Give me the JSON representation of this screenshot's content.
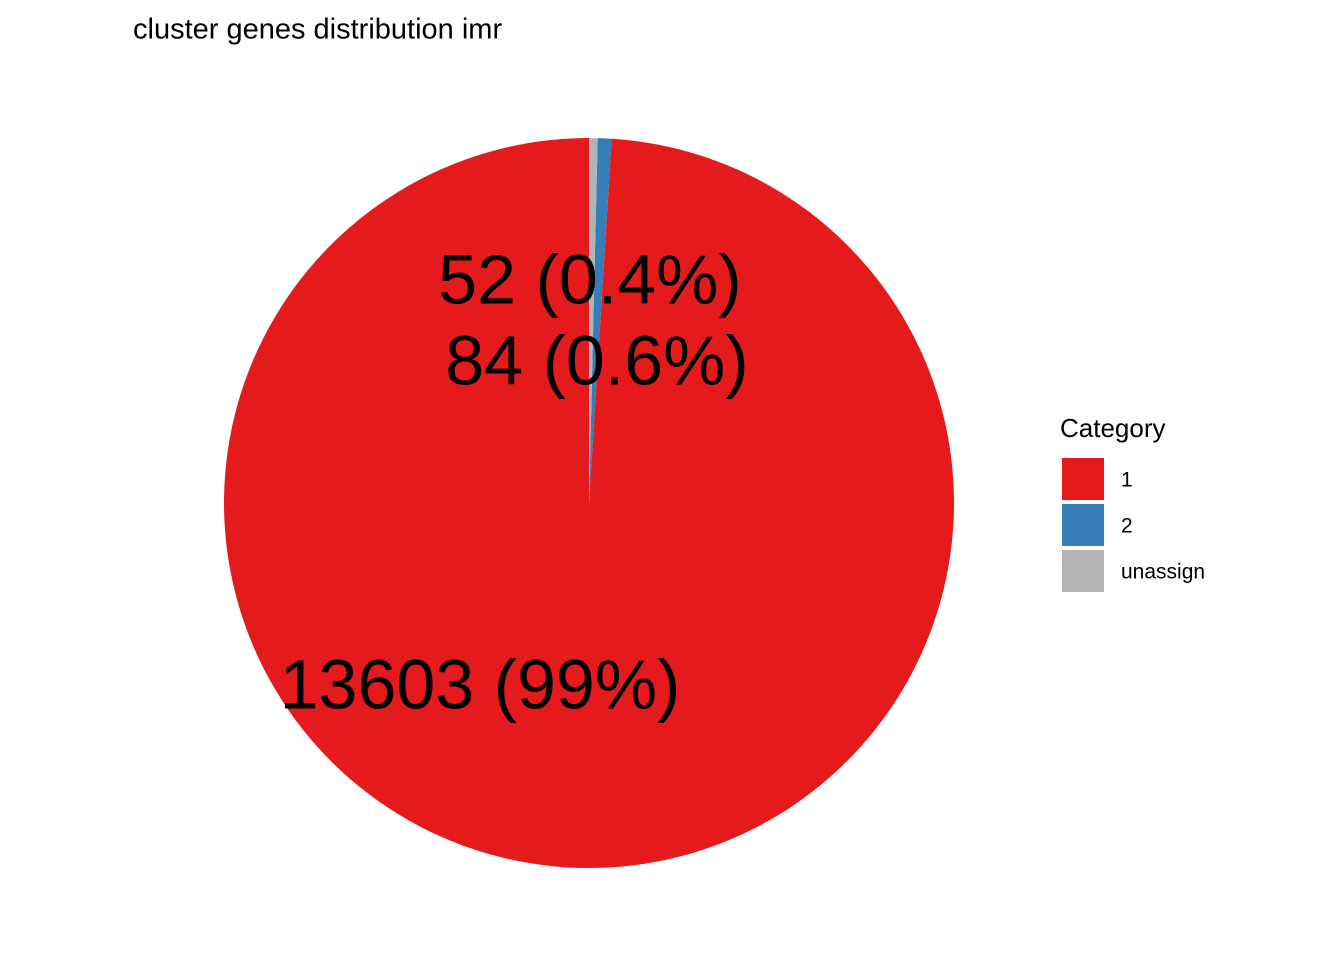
{
  "chart_data": {
    "type": "pie",
    "title": "cluster genes distribution imr",
    "categories": [
      "1",
      "2",
      "unassign"
    ],
    "values": [
      13603,
      84,
      52
    ],
    "value_labels": [
      "13603 (99%)",
      "84 (0.6%)",
      "52 (0.4%)"
    ],
    "colors": [
      "#E41A1C",
      "#377EB8",
      "#B3B3B3"
    ],
    "legend_title": "Category",
    "legend": "right"
  }
}
